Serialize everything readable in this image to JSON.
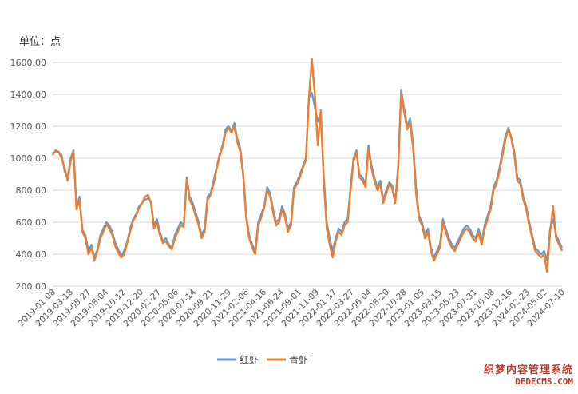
{
  "unit_label": "单位：点",
  "watermark": {
    "line1": "织梦内容管理系统",
    "line2": "DEDECMS.COM"
  },
  "chart_data": {
    "type": "line",
    "title": "",
    "xlabel": "",
    "ylabel": "单位：点",
    "ylim": [
      200,
      1650
    ],
    "yticks": [
      "200.00",
      "400.00",
      "600.00",
      "800.00",
      "1000.00",
      "1200.00",
      "1400.00",
      "1600.00"
    ],
    "xticks": [
      "2019-01-08",
      "2019-03-18",
      "2019-05-27",
      "2019-08-04",
      "2019-10-12",
      "2019-12-20",
      "2020-02-27",
      "2020-05-06",
      "2020-07-14",
      "2020-09-21",
      "2020-11-29",
      "2021-02-06",
      "2021-04-16",
      "2021-06-24",
      "2021-09-01",
      "2021-11-09",
      "2022-01-17",
      "2022-03-27",
      "2022-06-04",
      "2022-08-20",
      "2022-10-28",
      "2023-01-05",
      "2023-03-15",
      "2023-05-23",
      "2023-07-31",
      "2023-10-08",
      "2023-12-16",
      "2024-02-23",
      "2024-05-02",
      "2024-07-10"
    ],
    "legend": "bottom-center",
    "grid": true,
    "colors": {
      "红虾": "#5b9bd5",
      "青虾": "#ed7d31"
    },
    "series": [
      {
        "name": "红虾",
        "values": [
          1030,
          1045,
          1035,
          1020,
          920,
          880,
          1000,
          1050,
          700,
          760,
          550,
          520,
          420,
          460,
          380,
          430,
          520,
          560,
          600,
          580,
          540,
          470,
          430,
          390,
          420,
          480,
          560,
          620,
          650,
          700,
          720,
          740,
          750,
          730,
          580,
          620,
          540,
          480,
          500,
          460,
          440,
          520,
          560,
          600,
          580,
          880,
          760,
          720,
          660,
          600,
          520,
          560,
          760,
          780,
          860,
          940,
          1020,
          1080,
          1180,
          1200,
          1170,
          1220,
          1120,
          1060,
          900,
          640,
          520,
          460,
          420,
          600,
          650,
          700,
          820,
          780,
          680,
          600,
          620,
          700,
          650,
          560,
          600,
          820,
          850,
          900,
          950,
          1000,
          1380,
          1410,
          1320,
          1230,
          1280,
          900,
          600,
          500,
          420,
          500,
          560,
          540,
          600,
          620,
          820,
          1000,
          1050,
          900,
          880,
          840,
          1080,
          960,
          880,
          820,
          860,
          740,
          800,
          850,
          830,
          730,
          960,
          1430,
          1310,
          1200,
          1250,
          1090,
          820,
          640,
          600,
          520,
          560,
          440,
          380,
          420,
          460,
          620,
          560,
          500,
          460,
          440,
          480,
          520,
          560,
          580,
          560,
          520,
          500,
          560,
          480,
          580,
          640,
          700,
          820,
          860,
          940,
          1040,
          1140,
          1190,
          1130,
          1040,
          880,
          860,
          760,
          700,
          600,
          520,
          440,
          420,
          400,
          420,
          360,
          560,
          620,
          520,
          480,
          440
        ]
      },
      {
        "name": "青虾",
        "values": [
          1020,
          1050,
          1040,
          1000,
          940,
          860,
          980,
          1040,
          680,
          740,
          540,
          500,
          400,
          440,
          360,
          420,
          500,
          540,
          590,
          560,
          520,
          450,
          410,
          380,
          400,
          470,
          540,
          610,
          640,
          690,
          720,
          760,
          770,
          720,
          560,
          600,
          520,
          470,
          480,
          450,
          430,
          500,
          540,
          580,
          570,
          870,
          740,
          700,
          640,
          580,
          500,
          540,
          740,
          770,
          840,
          930,
          1010,
          1070,
          1160,
          1190,
          1160,
          1200,
          1100,
          1040,
          880,
          620,
          500,
          440,
          400,
          580,
          630,
          690,
          800,
          760,
          660,
          580,
          600,
          680,
          630,
          540,
          580,
          800,
          840,
          880,
          940,
          990,
          1370,
          1620,
          1400,
          1080,
          1300,
          860,
          560,
          460,
          380,
          480,
          540,
          520,
          580,
          600,
          800,
          980,
          1040,
          880,
          860,
          820,
          1060,
          940,
          860,
          800,
          840,
          720,
          780,
          840,
          810,
          720,
          940,
          1410,
          1290,
          1180,
          1220,
          1060,
          780,
          620,
          580,
          500,
          540,
          420,
          360,
          400,
          440,
          600,
          540,
          480,
          440,
          420,
          460,
          500,
          540,
          560,
          540,
          500,
          480,
          540,
          460,
          560,
          620,
          680,
          800,
          840,
          920,
          1020,
          1120,
          1180,
          1120,
          1020,
          860,
          840,
          740,
          680,
          580,
          500,
          420,
          400,
          380,
          400,
          290,
          540,
          700,
          500,
          460,
          420
        ]
      }
    ]
  }
}
